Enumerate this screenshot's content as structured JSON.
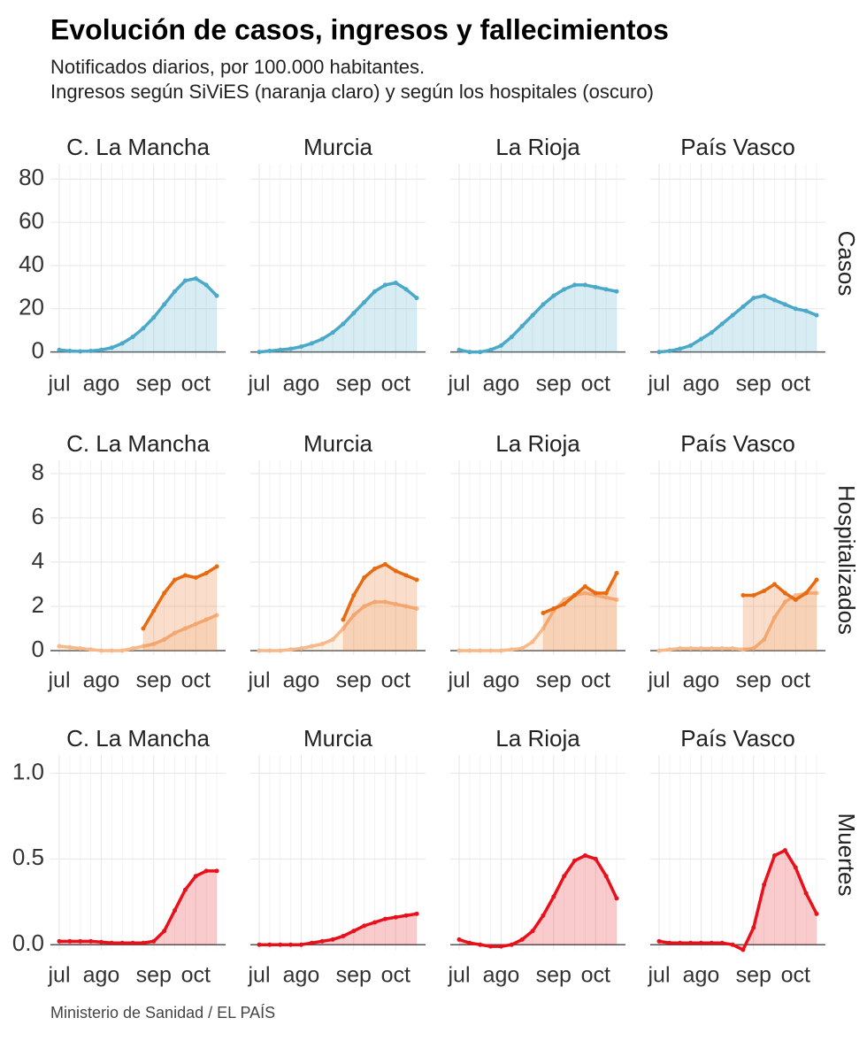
{
  "title": "Evolución de casos, ingresos y fallecimientos",
  "subtitle": [
    "Notificados diarios, por 100.000 habitantes.",
    "Ingresos según SiViES (naranja claro) y según los hospitales (oscuro)"
  ],
  "source": "Ministerio de Sanidad / EL PAÍS",
  "chart_data": [
    {
      "type": "line",
      "label": "Casos",
      "categories": [
        "jul",
        null,
        null,
        null,
        "ago",
        null,
        null,
        null,
        null,
        "sep",
        null,
        null,
        null,
        "oct",
        null,
        null
      ],
      "ylim": [
        -3,
        85
      ],
      "yticks": [
        0,
        20,
        40,
        60,
        80
      ],
      "grid": true,
      "panels": [
        {
          "title": "C. La Mancha",
          "series": [
            {
              "color": "#4aa8c8",
              "values": [
                1,
                0.5,
                0.3,
                0.5,
                1,
                2,
                4,
                7,
                11,
                16,
                22,
                28,
                33,
                34,
                31,
                26
              ]
            }
          ]
        },
        {
          "title": "Murcia",
          "series": [
            {
              "color": "#4aa8c8",
              "values": [
                0,
                0.5,
                1,
                1.5,
                2.5,
                4,
                6,
                9,
                13,
                18,
                23,
                28,
                31,
                32,
                29,
                25
              ]
            }
          ]
        },
        {
          "title": "La Rioja",
          "series": [
            {
              "color": "#4aa8c8",
              "values": [
                1,
                0,
                0,
                1,
                3,
                7,
                12,
                17,
                22,
                26,
                29,
                31,
                31,
                30,
                29,
                28
              ]
            }
          ]
        },
        {
          "title": "País Vasco",
          "series": [
            {
              "color": "#4aa8c8",
              "values": [
                0,
                0.5,
                1.5,
                3,
                6,
                9,
                13,
                17,
                21,
                25,
                26,
                24,
                22,
                20,
                19,
                17
              ]
            }
          ]
        }
      ]
    },
    {
      "type": "line",
      "label": "Hospitalizados",
      "categories": [
        "jul",
        null,
        null,
        null,
        "ago",
        null,
        null,
        null,
        null,
        "sep",
        null,
        null,
        null,
        "oct",
        null,
        null
      ],
      "ylim": [
        -0.2,
        8.4
      ],
      "yticks": [
        0,
        2,
        4,
        6,
        8
      ],
      "grid": true,
      "panels": [
        {
          "title": "C. La Mancha",
          "series": [
            {
              "color": "#f7b98a",
              "values": [
                0.2,
                0.15,
                0.1,
                0.05,
                0,
                0,
                0,
                0.1,
                0.2,
                0.3,
                0.5,
                0.8,
                1.0,
                1.2,
                1.4,
                1.6
              ]
            },
            {
              "color": "#e86a10",
              "values": [
                null,
                null,
                null,
                null,
                null,
                null,
                null,
                null,
                1.0,
                1.8,
                2.6,
                3.2,
                3.4,
                3.3,
                3.5,
                3.8
              ]
            }
          ]
        },
        {
          "title": "Murcia",
          "series": [
            {
              "color": "#f7b98a",
              "values": [
                0,
                0,
                0,
                0.05,
                0.1,
                0.2,
                0.3,
                0.5,
                1.0,
                1.6,
                2.0,
                2.2,
                2.2,
                2.1,
                2.0,
                1.9
              ]
            },
            {
              "color": "#e86a10",
              "values": [
                null,
                null,
                null,
                null,
                null,
                null,
                null,
                null,
                1.4,
                2.5,
                3.3,
                3.7,
                3.9,
                3.6,
                3.4,
                3.2
              ]
            }
          ]
        },
        {
          "title": "La Rioja",
          "series": [
            {
              "color": "#f7b98a",
              "values": [
                0,
                0,
                0,
                0,
                0,
                0.05,
                0.1,
                0.4,
                1.0,
                1.8,
                2.3,
                2.5,
                2.6,
                2.5,
                2.4,
                2.3
              ]
            },
            {
              "color": "#e86a10",
              "values": [
                null,
                null,
                null,
                null,
                null,
                null,
                null,
                null,
                1.7,
                1.9,
                2.1,
                2.5,
                2.9,
                2.6,
                2.6,
                3.5
              ]
            }
          ]
        },
        {
          "title": "País Vasco",
          "series": [
            {
              "color": "#f7b98a",
              "values": [
                0,
                0.05,
                0.1,
                0.1,
                0.1,
                0.1,
                0.1,
                0.1,
                0.05,
                0.1,
                0.5,
                1.5,
                2.2,
                2.5,
                2.6,
                2.6
              ]
            },
            {
              "color": "#e86a10",
              "values": [
                null,
                null,
                null,
                null,
                null,
                null,
                null,
                null,
                2.5,
                2.5,
                2.7,
                3.0,
                2.6,
                2.3,
                2.6,
                3.2
              ]
            }
          ]
        }
      ]
    },
    {
      "type": "line",
      "label": "Muertes",
      "categories": [
        "jul",
        null,
        null,
        null,
        "ago",
        null,
        null,
        null,
        null,
        "sep",
        null,
        null,
        null,
        "oct",
        null,
        null
      ],
      "ylim": [
        -0.03,
        1.08
      ],
      "yticks": [
        {
          "value": 0,
          "label": "0.0"
        },
        0.5,
        {
          "value": 1,
          "label": "1.0"
        }
      ],
      "grid": true,
      "panels": [
        {
          "title": "C. La Mancha",
          "series": [
            {
              "color": "#e8101a",
              "values": [
                0.02,
                0.02,
                0.02,
                0.02,
                0.015,
                0.01,
                0.01,
                0.01,
                0.01,
                0.02,
                0.08,
                0.2,
                0.32,
                0.4,
                0.43,
                0.43
              ]
            }
          ]
        },
        {
          "title": "Murcia",
          "series": [
            {
              "color": "#e8101a",
              "values": [
                0,
                0,
                0,
                0,
                0,
                0.01,
                0.02,
                0.03,
                0.05,
                0.08,
                0.11,
                0.13,
                0.15,
                0.16,
                0.17,
                0.18
              ]
            }
          ]
        },
        {
          "title": "La Rioja",
          "series": [
            {
              "color": "#e8101a",
              "values": [
                0.03,
                0.01,
                0,
                -0.01,
                -0.01,
                0,
                0.03,
                0.08,
                0.17,
                0.28,
                0.4,
                0.49,
                0.52,
                0.5,
                0.4,
                0.27
              ]
            }
          ]
        },
        {
          "title": "País Vasco",
          "series": [
            {
              "color": "#e8101a",
              "values": [
                0.02,
                0.01,
                0.01,
                0.01,
                0.01,
                0.01,
                0.01,
                0,
                -0.03,
                0.1,
                0.35,
                0.52,
                0.55,
                0.45,
                0.3,
                0.18
              ]
            }
          ]
        }
      ]
    }
  ]
}
